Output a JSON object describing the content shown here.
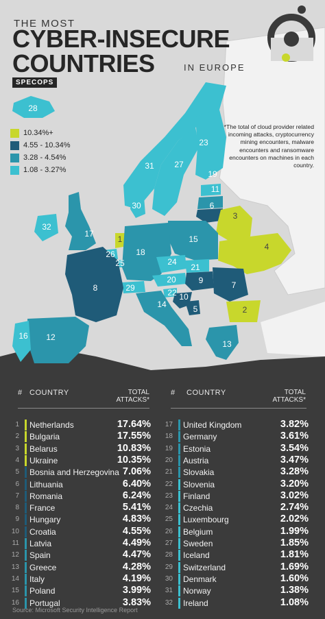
{
  "header": {
    "line1": "THE MOST",
    "line2": "CYBER-INSECURE",
    "line3": "COUNTRIES",
    "line4": "IN EUROPE",
    "brand": "SPECOPS"
  },
  "legend": [
    {
      "label": "10.34%+",
      "color": "#c8d72c"
    },
    {
      "label": "4.55 - 10.34%",
      "color": "#1f5b78"
    },
    {
      "label": "3.28 - 4.54%",
      "color": "#2b95ab"
    },
    {
      "label": "1.08 - 3.27%",
      "color": "#3cc0d0"
    }
  ],
  "note": "*The total of cloud provider related incoming attacks, cryptocurrency mining encounters, malware encounters and ransomware encounters on machines in each country.",
  "map_labels": [
    "28",
    "23",
    "31",
    "27",
    "19",
    "11",
    "6",
    "30",
    "17",
    "32",
    "3",
    "15",
    "1",
    "26",
    "25",
    "18",
    "4",
    "24",
    "21",
    "9",
    "7",
    "29",
    "20",
    "22",
    "10",
    "5",
    "8",
    "2",
    "14",
    "16",
    "12",
    "13"
  ],
  "table": {
    "hash_label": "#",
    "country_label": "COUNTRY",
    "total_label_1": "TOTAL",
    "total_label_2": "ATTACKS*",
    "rows": [
      {
        "rank": "1",
        "country": "Netherlands",
        "pct": "17.64%",
        "color": "#c8d72c"
      },
      {
        "rank": "2",
        "country": "Bulgaria",
        "pct": "17.55%",
        "color": "#c8d72c"
      },
      {
        "rank": "3",
        "country": "Belarus",
        "pct": "10.83%",
        "color": "#c8d72c"
      },
      {
        "rank": "4",
        "country": "Ukraine",
        "pct": "10.35%",
        "color": "#c8d72c"
      },
      {
        "rank": "5",
        "country": "Bosnia and Herzegovina",
        "pct": "7.06%",
        "color": "#1f5b78"
      },
      {
        "rank": "6",
        "country": "Lithuania",
        "pct": "6.40%",
        "color": "#1f5b78"
      },
      {
        "rank": "7",
        "country": "Romania",
        "pct": "6.24%",
        "color": "#1f5b78"
      },
      {
        "rank": "8",
        "country": "France",
        "pct": "5.41%",
        "color": "#1f5b78"
      },
      {
        "rank": "9",
        "country": "Hungary",
        "pct": "4.83%",
        "color": "#1f5b78"
      },
      {
        "rank": "10",
        "country": "Croatia",
        "pct": "4.55%",
        "color": "#1f5b78"
      },
      {
        "rank": "11",
        "country": "Latvia",
        "pct": "4.49%",
        "color": "#2b95ab"
      },
      {
        "rank": "12",
        "country": "Spain",
        "pct": "4.47%",
        "color": "#2b95ab"
      },
      {
        "rank": "13",
        "country": "Greece",
        "pct": "4.28%",
        "color": "#2b95ab"
      },
      {
        "rank": "14",
        "country": "Italy",
        "pct": "4.19%",
        "color": "#2b95ab"
      },
      {
        "rank": "15",
        "country": "Poland",
        "pct": "3.99%",
        "color": "#2b95ab"
      },
      {
        "rank": "16",
        "country": "Portugal",
        "pct": "3.83%",
        "color": "#2b95ab"
      },
      {
        "rank": "17",
        "country": "United Kingdom",
        "pct": "3.82%",
        "color": "#2b95ab"
      },
      {
        "rank": "18",
        "country": "Germany",
        "pct": "3.61%",
        "color": "#2b95ab"
      },
      {
        "rank": "19",
        "country": "Estonia",
        "pct": "3.54%",
        "color": "#2b95ab"
      },
      {
        "rank": "20",
        "country": "Austria",
        "pct": "3.47%",
        "color": "#2b95ab"
      },
      {
        "rank": "21",
        "country": "Slovakia",
        "pct": "3.28%",
        "color": "#2b95ab"
      },
      {
        "rank": "22",
        "country": "Slovenia",
        "pct": "3.20%",
        "color": "#3cc0d0"
      },
      {
        "rank": "23",
        "country": "Finland",
        "pct": "3.02%",
        "color": "#3cc0d0"
      },
      {
        "rank": "24",
        "country": "Czechia",
        "pct": "2.74%",
        "color": "#3cc0d0"
      },
      {
        "rank": "25",
        "country": "Luxembourg",
        "pct": "2.02%",
        "color": "#3cc0d0"
      },
      {
        "rank": "26",
        "country": "Belgium",
        "pct": "1.99%",
        "color": "#3cc0d0"
      },
      {
        "rank": "27",
        "country": "Sweden",
        "pct": "1.85%",
        "color": "#3cc0d0"
      },
      {
        "rank": "28",
        "country": "Iceland",
        "pct": "1.81%",
        "color": "#3cc0d0"
      },
      {
        "rank": "29",
        "country": "Switzerland",
        "pct": "1.69%",
        "color": "#3cc0d0"
      },
      {
        "rank": "30",
        "country": "Denmark",
        "pct": "1.60%",
        "color": "#3cc0d0"
      },
      {
        "rank": "31",
        "country": "Norway",
        "pct": "1.38%",
        "color": "#3cc0d0"
      },
      {
        "rank": "32",
        "country": "Ireland",
        "pct": "1.08%",
        "color": "#3cc0d0"
      }
    ]
  },
  "source": "Source: Microsoft Security Intelligence Report"
}
